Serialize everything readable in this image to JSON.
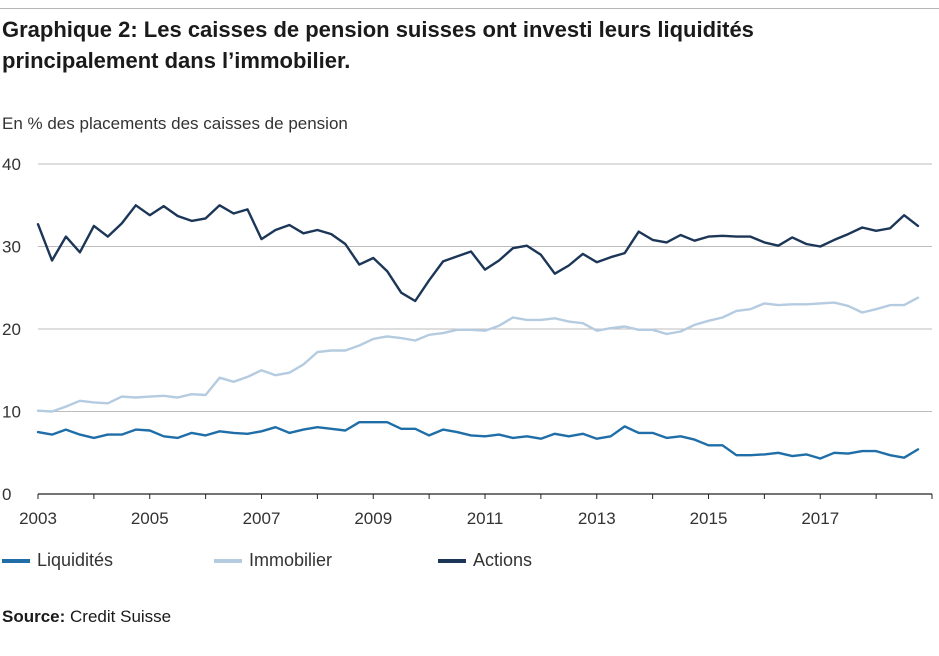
{
  "title": "Graphique 2: Les caisses de pension suisses ont investi leurs liquidités principalement dans l’immobilier.",
  "unit_label": "En % des placements des caisses de pension",
  "source_label": "Source:",
  "source_text": "Credit Suisse",
  "chart_data": {
    "type": "line",
    "title": "Graphique 2: Les caisses de pension suisses ont investi leurs liquidités principalement dans l’immobilier.",
    "ylabel": "En % des placements des caisses de pension",
    "xlabel": "",
    "xlim": [
      2003,
      2019
    ],
    "ylim": [
      0,
      40
    ],
    "yticks": [
      0,
      10,
      20,
      30,
      40
    ],
    "xticks": [
      2003,
      2005,
      2007,
      2009,
      2011,
      2013,
      2015,
      2017
    ],
    "grid": true,
    "legend_position": "bottom",
    "series": [
      {
        "name": "Liquidités",
        "color": "#1f6ea8",
        "x": [
          2003.0,
          2003.25,
          2003.5,
          2003.75,
          2004.0,
          2004.25,
          2004.5,
          2004.75,
          2005.0,
          2005.25,
          2005.5,
          2005.75,
          2006.0,
          2006.25,
          2006.5,
          2006.75,
          2007.0,
          2007.25,
          2007.5,
          2007.75,
          2008.0,
          2008.25,
          2008.5,
          2008.75,
          2009.0,
          2009.25,
          2009.5,
          2009.75,
          2010.0,
          2010.25,
          2010.5,
          2010.75,
          2011.0,
          2011.25,
          2011.5,
          2011.75,
          2012.0,
          2012.25,
          2012.5,
          2012.75,
          2013.0,
          2013.25,
          2013.5,
          2013.75,
          2014.0,
          2014.25,
          2014.5,
          2014.75,
          2015.0,
          2015.25,
          2015.5,
          2015.75,
          2016.0,
          2016.25,
          2016.5,
          2016.75,
          2017.0,
          2017.25,
          2017.5,
          2017.75,
          2018.0,
          2018.25,
          2018.5,
          2018.75
        ],
        "values": [
          7.5,
          7.2,
          7.8,
          7.2,
          6.8,
          7.2,
          7.2,
          7.8,
          7.7,
          7.0,
          6.8,
          7.4,
          7.1,
          7.6,
          7.4,
          7.3,
          7.6,
          8.1,
          7.4,
          7.8,
          8.1,
          7.9,
          7.7,
          8.7,
          8.7,
          8.7,
          7.9,
          7.9,
          7.1,
          7.8,
          7.5,
          7.1,
          7.0,
          7.2,
          6.8,
          7.0,
          6.7,
          7.3,
          7.0,
          7.3,
          6.7,
          7.0,
          8.2,
          7.4,
          7.4,
          6.8,
          7.0,
          6.6,
          5.9,
          5.9,
          4.7,
          4.7,
          4.8,
          5.0,
          4.6,
          4.8,
          4.3,
          5.0,
          4.9,
          5.2,
          5.2,
          4.7,
          4.4,
          5.4
        ]
      },
      {
        "name": "Immobilier",
        "color": "#b4cbe0",
        "x": [
          2003.0,
          2003.25,
          2003.5,
          2003.75,
          2004.0,
          2004.25,
          2004.5,
          2004.75,
          2005.0,
          2005.25,
          2005.5,
          2005.75,
          2006.0,
          2006.25,
          2006.5,
          2006.75,
          2007.0,
          2007.25,
          2007.5,
          2007.75,
          2008.0,
          2008.25,
          2008.5,
          2008.75,
          2009.0,
          2009.25,
          2009.5,
          2009.75,
          2010.0,
          2010.25,
          2010.5,
          2010.75,
          2011.0,
          2011.25,
          2011.5,
          2011.75,
          2012.0,
          2012.25,
          2012.5,
          2012.75,
          2013.0,
          2013.25,
          2013.5,
          2013.75,
          2014.0,
          2014.25,
          2014.5,
          2014.75,
          2015.0,
          2015.25,
          2015.5,
          2015.75,
          2016.0,
          2016.25,
          2016.5,
          2016.75,
          2017.0,
          2017.25,
          2017.5,
          2017.75,
          2018.0,
          2018.25,
          2018.5,
          2018.75
        ],
        "values": [
          10.1,
          10.0,
          10.6,
          11.3,
          11.1,
          11.0,
          11.8,
          11.7,
          11.8,
          11.9,
          11.7,
          12.1,
          12.0,
          14.1,
          13.6,
          14.2,
          15.0,
          14.4,
          14.7,
          15.7,
          17.2,
          17.4,
          17.4,
          18.0,
          18.8,
          19.1,
          18.9,
          18.6,
          19.3,
          19.5,
          19.9,
          19.9,
          19.8,
          20.4,
          21.4,
          21.1,
          21.1,
          21.3,
          20.9,
          20.7,
          19.8,
          20.1,
          20.3,
          19.9,
          19.9,
          19.4,
          19.7,
          20.5,
          21.0,
          21.4,
          22.2,
          22.4,
          23.1,
          22.9,
          23.0,
          23.0,
          23.1,
          23.2,
          22.8,
          22.0,
          22.4,
          22.9,
          22.9,
          23.8
        ]
      },
      {
        "name": "Actions",
        "color": "#1c3657",
        "x": [
          2003.0,
          2003.25,
          2003.5,
          2003.75,
          2004.0,
          2004.25,
          2004.5,
          2004.75,
          2005.0,
          2005.25,
          2005.5,
          2005.75,
          2006.0,
          2006.25,
          2006.5,
          2006.75,
          2007.0,
          2007.25,
          2007.5,
          2007.75,
          2008.0,
          2008.25,
          2008.5,
          2008.75,
          2009.0,
          2009.25,
          2009.5,
          2009.75,
          2010.0,
          2010.25,
          2010.5,
          2010.75,
          2011.0,
          2011.25,
          2011.5,
          2011.75,
          2012.0,
          2012.25,
          2012.5,
          2012.75,
          2013.0,
          2013.25,
          2013.5,
          2013.75,
          2014.0,
          2014.25,
          2014.5,
          2014.75,
          2015.0,
          2015.25,
          2015.5,
          2015.75,
          2016.0,
          2016.25,
          2016.5,
          2016.75,
          2017.0,
          2017.25,
          2017.5,
          2017.75,
          2018.0,
          2018.25,
          2018.5,
          2018.75
        ],
        "values": [
          32.7,
          28.3,
          31.2,
          29.3,
          32.5,
          31.2,
          32.8,
          35.0,
          33.8,
          34.9,
          33.7,
          33.1,
          33.4,
          35.0,
          34.0,
          34.5,
          30.9,
          32.0,
          32.6,
          31.6,
          32.0,
          31.5,
          30.3,
          27.8,
          28.6,
          27.0,
          24.4,
          23.4,
          25.9,
          28.2,
          28.8,
          29.4,
          27.2,
          28.3,
          29.8,
          30.1,
          29.0,
          26.7,
          27.7,
          29.1,
          28.1,
          28.7,
          29.2,
          31.8,
          30.8,
          30.5,
          31.4,
          30.7,
          31.2,
          31.3,
          31.2,
          31.2,
          30.5,
          30.1,
          31.1,
          30.3,
          30.0,
          30.8,
          31.5,
          32.3,
          31.9,
          32.2,
          33.8,
          32.5
        ]
      }
    ]
  }
}
